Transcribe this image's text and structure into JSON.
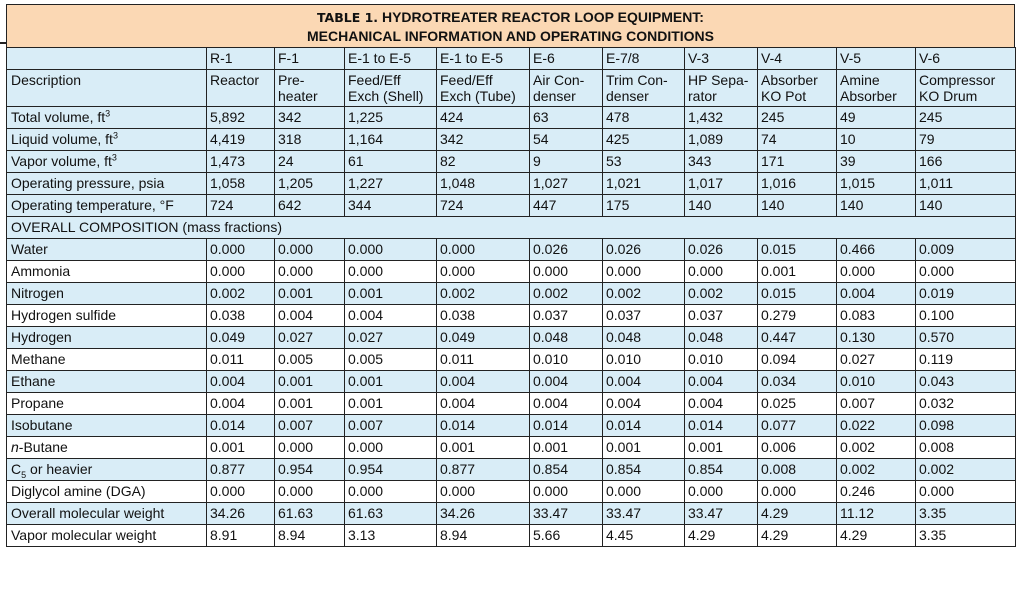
{
  "title": {
    "line1_prefix": "TABLE 1.",
    "line1_rest": " HYDROTREATER REACTOR LOOP EQUIPMENT:",
    "line2": "MECHANICAL INFORMATION AND OPERATING CONDITIONS"
  },
  "tags": [
    "R-1",
    "F-1",
    "E-1 to E-5",
    "E-1 to E-5",
    "E-6",
    "E-7/8",
    "V-3",
    "V-4",
    "V-5",
    "V-6"
  ],
  "description_label": "Description",
  "descriptions": [
    [
      "Reactor",
      ""
    ],
    [
      "Pre-",
      "heater"
    ],
    [
      "Feed/Eff",
      "Exch (Shell)"
    ],
    [
      "Feed/Eff",
      "Exch (Tube)"
    ],
    [
      "Air Con-",
      "denser"
    ],
    [
      "Trim Con-",
      "denser"
    ],
    [
      "HP Sepa-",
      "rator"
    ],
    [
      "Absorber",
      "KO Pot"
    ],
    [
      "Amine",
      "Absorber"
    ],
    [
      "Compressor",
      "KO Drum"
    ]
  ],
  "mech_rows": [
    {
      "label": "Total volume, ft",
      "sup": "3",
      "values": [
        "5,892",
        "342",
        "1,225",
        "424",
        "63",
        "478",
        "1,432",
        "245",
        "49",
        "245"
      ]
    },
    {
      "label": "Liquid volume, ft",
      "sup": "3",
      "values": [
        "4,419",
        "318",
        "1,164",
        "342",
        "54",
        "425",
        "1,089",
        "74",
        "10",
        "79"
      ]
    },
    {
      "label": "Vapor volume, ft",
      "sup": "3",
      "values": [
        "1,473",
        "24",
        "61",
        "82",
        "9",
        "53",
        "343",
        "171",
        "39",
        "166"
      ]
    },
    {
      "label": "Operating pressure, psia",
      "sup": "",
      "values": [
        "1,058",
        "1,205",
        "1,227",
        "1,048",
        "1,027",
        "1,021",
        "1,017",
        "1,016",
        "1,015",
        "1,011"
      ]
    },
    {
      "label": "Operating temperature, °F",
      "sup": "",
      "values": [
        "724",
        "642",
        "344",
        "724",
        "447",
        "175",
        "140",
        "140",
        "140",
        "140"
      ]
    }
  ],
  "section_label": "OVERALL COMPOSITION (mass fractions)",
  "comp_rows": [
    {
      "label": "Water",
      "values": [
        "0.000",
        "0.000",
        "0.000",
        "0.000",
        "0.026",
        "0.026",
        "0.026",
        "0.015",
        "0.466",
        "0.009"
      ]
    },
    {
      "label": "Ammonia",
      "values": [
        "0.000",
        "0.000",
        "0.000",
        "0.000",
        "0.000",
        "0.000",
        "0.000",
        "0.001",
        "0.000",
        "0.000"
      ]
    },
    {
      "label": "Nitrogen",
      "values": [
        "0.002",
        "0.001",
        "0.001",
        "0.002",
        "0.002",
        "0.002",
        "0.002",
        "0.015",
        "0.004",
        "0.019"
      ]
    },
    {
      "label": "Hydrogen sulfide",
      "values": [
        "0.038",
        "0.004",
        "0.004",
        "0.038",
        "0.037",
        "0.037",
        "0.037",
        "0.279",
        "0.083",
        "0.100"
      ]
    },
    {
      "label": "Hydrogen",
      "values": [
        "0.049",
        "0.027",
        "0.027",
        "0.049",
        "0.048",
        "0.048",
        "0.048",
        "0.447",
        "0.130",
        "0.570"
      ]
    },
    {
      "label": "Methane",
      "values": [
        "0.011",
        "0.005",
        "0.005",
        "0.011",
        "0.010",
        "0.010",
        "0.010",
        "0.094",
        "0.027",
        "0.119"
      ]
    },
    {
      "label": "Ethane",
      "values": [
        "0.004",
        "0.001",
        "0.001",
        "0.004",
        "0.004",
        "0.004",
        "0.004",
        "0.034",
        "0.010",
        "0.043"
      ]
    },
    {
      "label": "Propane",
      "values": [
        "0.004",
        "0.001",
        "0.001",
        "0.004",
        "0.004",
        "0.004",
        "0.004",
        "0.025",
        "0.007",
        "0.032"
      ]
    },
    {
      "label": "Isobutane",
      "values": [
        "0.014",
        "0.007",
        "0.007",
        "0.014",
        "0.014",
        "0.014",
        "0.014",
        "0.077",
        "0.022",
        "0.098"
      ]
    },
    {
      "label": "Butane",
      "prefix": "n",
      "values": [
        "0.001",
        "0.000",
        "0.000",
        "0.001",
        "0.001",
        "0.001",
        "0.001",
        "0.006",
        "0.002",
        "0.008"
      ]
    },
    {
      "label": " or heavier",
      "lead": "C",
      "sub": "5",
      "values": [
        "0.877",
        "0.954",
        "0.954",
        "0.877",
        "0.854",
        "0.854",
        "0.854",
        "0.008",
        "0.002",
        "0.002"
      ]
    },
    {
      "label": "Diglycol amine (DGA)",
      "values": [
        "0.000",
        "0.000",
        "0.000",
        "0.000",
        "0.000",
        "0.000",
        "0.000",
        "0.000",
        "0.246",
        "0.000"
      ]
    },
    {
      "label": "Overall molecular weight",
      "values": [
        "34.26",
        "61.63",
        "61.63",
        "34.26",
        "33.47",
        "33.47",
        "33.47",
        "4.29",
        "11.12",
        "3.35"
      ]
    },
    {
      "label": "Vapor molecular weight",
      "values": [
        "8.91",
        "8.94",
        "3.13",
        "8.94",
        "5.66",
        "4.45",
        "4.29",
        "4.29",
        "4.29",
        "3.35"
      ]
    }
  ],
  "colors": {
    "title_bg": "#fbd8b4",
    "band_bg": "#d9edf7",
    "rule": "#222222"
  }
}
